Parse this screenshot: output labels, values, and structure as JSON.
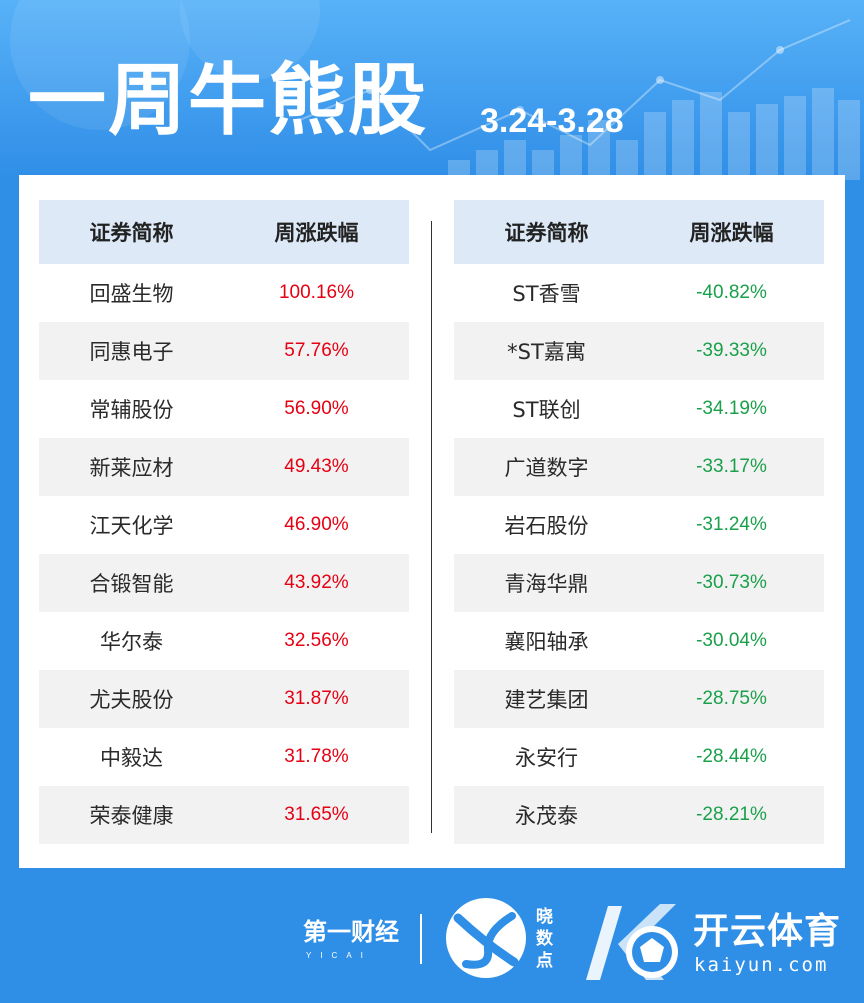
{
  "header": {
    "title": "一周牛熊股",
    "date_range": "3.24-3.28"
  },
  "bull_table": {
    "col_name": "证券简称",
    "col_change": "周涨跌幅",
    "rows": [
      {
        "name": "回盛生物",
        "change": "100.16%"
      },
      {
        "name": "同惠电子",
        "change": "57.76%"
      },
      {
        "name": "常辅股份",
        "change": "56.90%"
      },
      {
        "name": "新莱应材",
        "change": "49.43%"
      },
      {
        "name": "江天化学",
        "change": "46.90%"
      },
      {
        "name": "合锻智能",
        "change": "43.92%"
      },
      {
        "name": "华尔泰",
        "change": "32.56%"
      },
      {
        "name": "尤夫股份",
        "change": "31.87%"
      },
      {
        "name": "中毅达",
        "change": "31.78%"
      },
      {
        "name": "荣泰健康",
        "change": "31.65%"
      }
    ]
  },
  "bear_table": {
    "col_name": "证券简称",
    "col_change": "周涨跌幅",
    "rows": [
      {
        "name": "ST香雪",
        "change": "-40.82%"
      },
      {
        "name": "*ST嘉寓",
        "change": "-39.33%"
      },
      {
        "name": "ST联创",
        "change": "-34.19%"
      },
      {
        "name": "广道数字",
        "change": "-33.17%"
      },
      {
        "name": "岩石股份",
        "change": "-31.24%"
      },
      {
        "name": "青海华鼎",
        "change": "-30.73%"
      },
      {
        "name": "襄阳轴承",
        "change": "-30.04%"
      },
      {
        "name": "建艺集团",
        "change": "-28.75%"
      },
      {
        "name": "永安行",
        "change": "-28.44%"
      },
      {
        "name": "永茂泰",
        "change": "-28.21%"
      }
    ]
  },
  "footer": {
    "brand_yicai": "第一财经",
    "brand_yicai_sub": "YICAI",
    "brand_xiaoshudian": "晓数点",
    "brand_kaiyun": "开云体育",
    "brand_kaiyun_domain": "kaiyun.com"
  },
  "colors": {
    "up": "#e60012",
    "down": "#1aa04a",
    "background": "#2f8ee6",
    "table_header": "#dde9f7"
  }
}
